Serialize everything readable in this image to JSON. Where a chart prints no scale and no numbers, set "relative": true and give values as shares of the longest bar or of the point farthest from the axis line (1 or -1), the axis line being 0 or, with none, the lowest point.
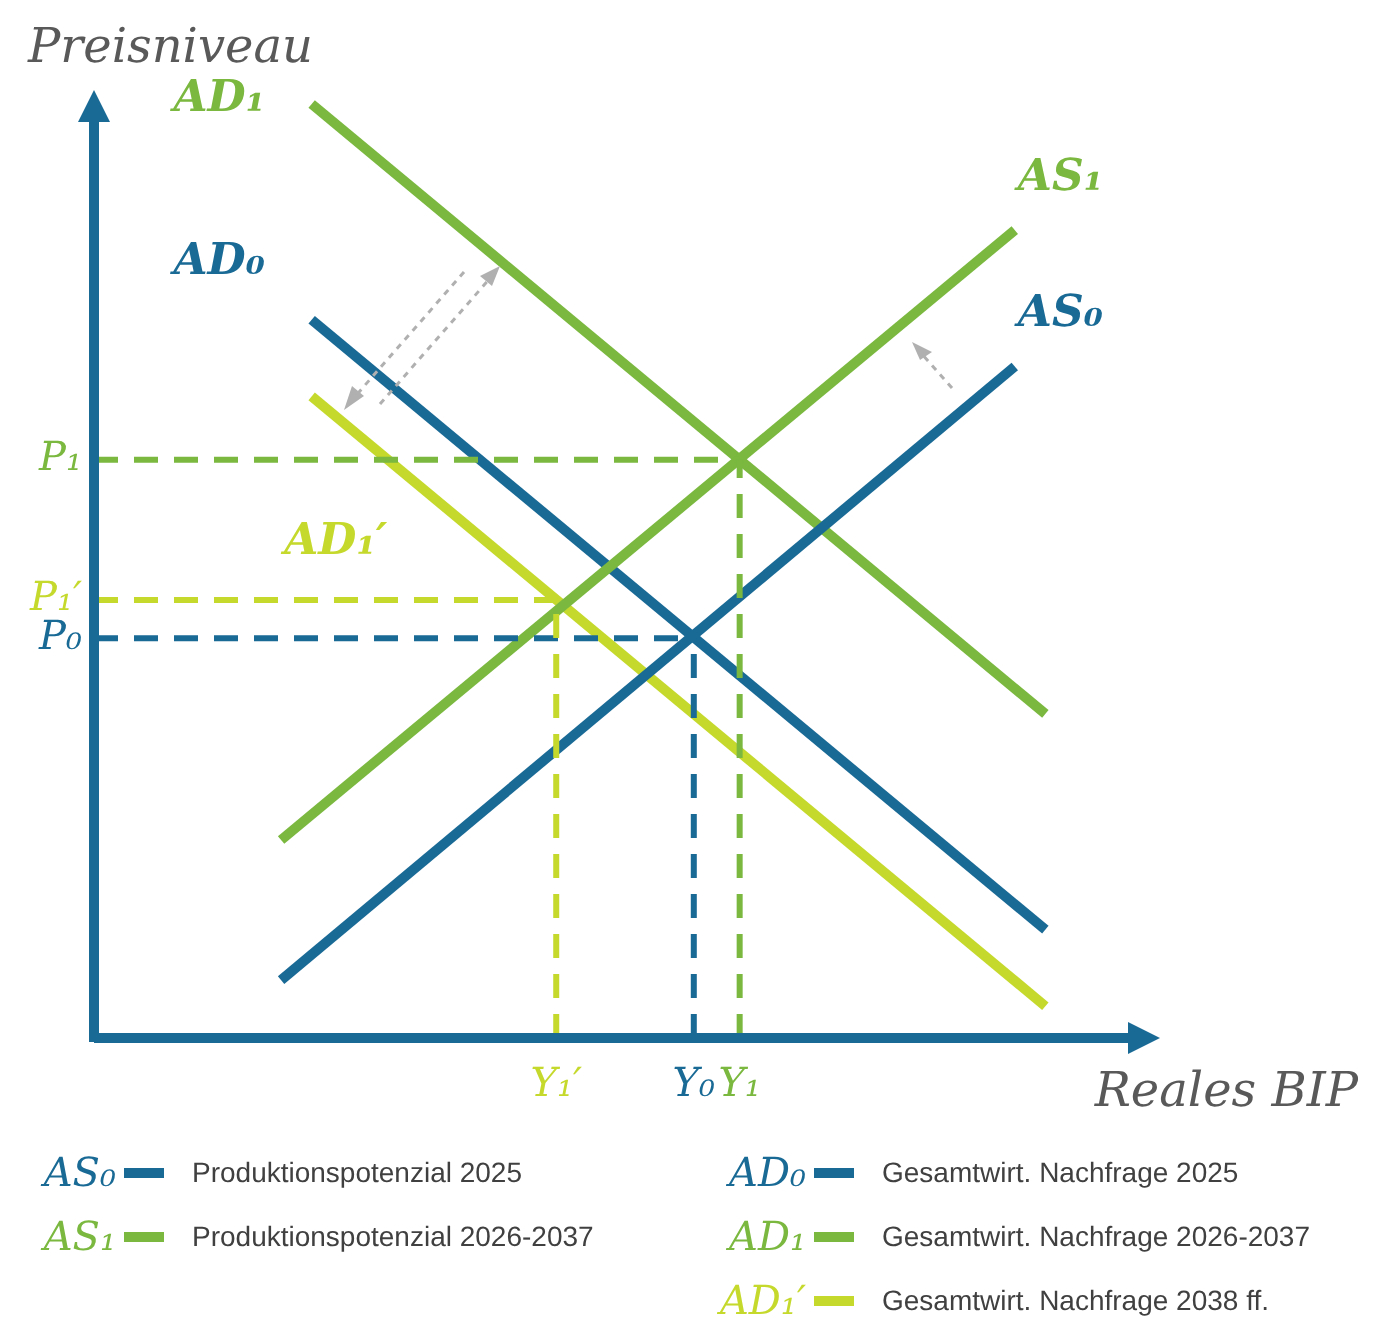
{
  "chart_data": {
    "type": "line",
    "relative": true,
    "xlabel": "Reales BIP",
    "ylabel": "Preisniveau",
    "legend": "bottom",
    "grid": false,
    "marker": "none",
    "line_style": "solid",
    "categories": [
      null,
      null,
      null,
      null,
      null,
      null,
      null,
      null,
      null,
      null,
      null,
      null,
      null,
      null,
      null,
      null,
      null,
      null,
      "Y₁′",
      null,
      null,
      null,
      null,
      null,
      null,
      null,
      null,
      "Y₀",
      null,
      null,
      "Y₁",
      null,
      null,
      null,
      null,
      null,
      null,
      null,
      null,
      null,
      null,
      null,
      null,
      null,
      null,
      null,
      null,
      null,
      null,
      null,
      null
    ],
    "series": [
      {
        "name": "AS₀",
        "color": "#1a6a96",
        "values": [
          0.062,
          null,
          null,
          null,
          null,
          null,
          null,
          null,
          null,
          null,
          null,
          null,
          null,
          null,
          null,
          null,
          null,
          null,
          null,
          null,
          null,
          null,
          null,
          null,
          null,
          null,
          null,
          null,
          null,
          null,
          null,
          null,
          null,
          null,
          null,
          null,
          null,
          null,
          null,
          null,
          null,
          null,
          null,
          null,
          null,
          null,
          null,
          null,
          0.719,
          null,
          null
        ]
      },
      {
        "name": "AS₁",
        "color": "#7ab83f",
        "values": [
          0.212,
          null,
          null,
          null,
          null,
          null,
          null,
          null,
          null,
          null,
          null,
          null,
          null,
          null,
          null,
          null,
          null,
          null,
          null,
          null,
          null,
          null,
          null,
          null,
          null,
          null,
          null,
          null,
          null,
          null,
          null,
          null,
          null,
          null,
          null,
          null,
          null,
          null,
          null,
          null,
          null,
          null,
          null,
          null,
          null,
          null,
          null,
          null,
          0.865,
          null,
          null
        ]
      },
      {
        "name": "AD₀",
        "color": "#1a6a96",
        "values": [
          null,
          null,
          0.769,
          null,
          null,
          null,
          null,
          null,
          null,
          null,
          null,
          null,
          null,
          null,
          null,
          null,
          null,
          null,
          null,
          null,
          null,
          null,
          null,
          null,
          null,
          null,
          null,
          null,
          null,
          null,
          null,
          null,
          null,
          null,
          null,
          null,
          null,
          null,
          null,
          null,
          null,
          null,
          null,
          null,
          null,
          null,
          null,
          null,
          null,
          null,
          0.116
        ]
      },
      {
        "name": "AD₁",
        "color": "#7ab83f",
        "values": [
          null,
          null,
          1,
          null,
          null,
          null,
          null,
          null,
          null,
          null,
          null,
          null,
          null,
          null,
          null,
          null,
          null,
          null,
          null,
          null,
          null,
          null,
          null,
          null,
          null,
          null,
          null,
          null,
          null,
          null,
          null,
          null,
          null,
          null,
          null,
          null,
          null,
          null,
          null,
          null,
          null,
          null,
          null,
          null,
          null,
          null,
          null,
          null,
          null,
          null,
          0.347
        ]
      },
      {
        "name": "AD₁′",
        "color": "#c5d92d",
        "values": [
          null,
          null,
          0.687,
          null,
          null,
          null,
          null,
          null,
          null,
          null,
          null,
          null,
          null,
          null,
          null,
          null,
          null,
          null,
          null,
          null,
          null,
          null,
          null,
          null,
          null,
          null,
          null,
          null,
          null,
          null,
          null,
          null,
          null,
          null,
          null,
          null,
          null,
          null,
          null,
          null,
          null,
          null,
          null,
          null,
          null,
          null,
          null,
          null,
          null,
          null,
          0.034
        ]
      }
    ],
    "ref_lines": [
      {
        "axis": "y",
        "value": 0.619,
        "label": "P₁",
        "color": "#7ab83f",
        "line_style": "dashed"
      },
      {
        "axis": "y",
        "value": 0.469,
        "label": "P₁′",
        "color": "#c5d92d",
        "line_style": "dashed"
      },
      {
        "axis": "y",
        "value": 0.428,
        "label": "P₀",
        "color": "#1a6a96",
        "line_style": "dashed"
      },
      {
        "axis": "x",
        "value": "Y₁′",
        "color": "#c5d92d",
        "line_style": "dashed"
      },
      {
        "axis": "x",
        "value": "Y₀",
        "color": "#1a6a96",
        "line_style": "dashed"
      },
      {
        "axis": "x",
        "value": "Y₁",
        "color": "#7ab83f",
        "line_style": "dashed"
      }
    ],
    "annotations": [
      "Produktionspotenzial 2025",
      "Produktionspotenzial 2026-2037",
      "Gesamtwirt. Nachfrage 2025",
      "Gesamtwirt. Nachfrage 2026-2037",
      "Gesamtwirt. Nachfrage 2038 ff."
    ]
  }
}
